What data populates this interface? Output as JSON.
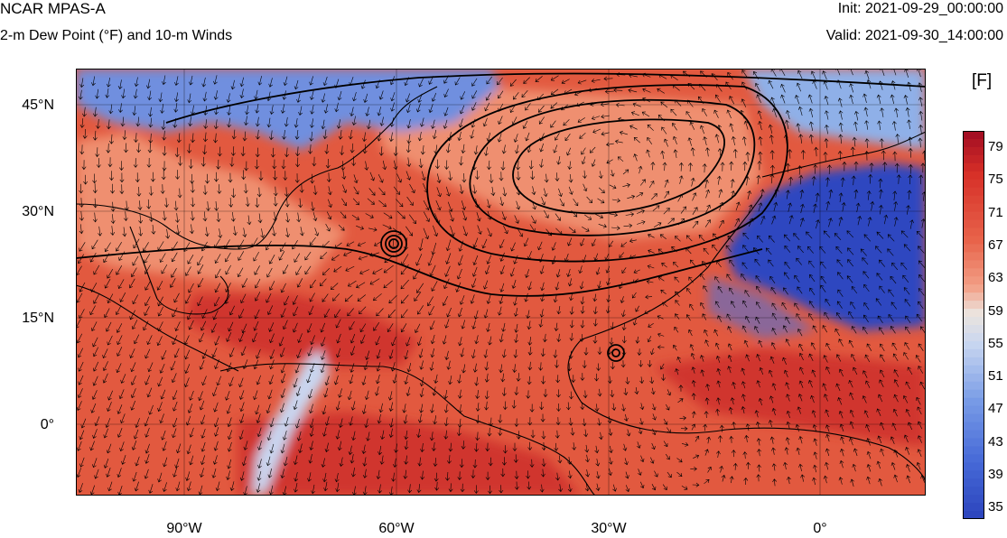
{
  "header": {
    "title": "NCAR MPAS-A",
    "subtitle": "2-m Dew Point (°F) and 10-m Winds",
    "init": "Init: 2021-09-29_00:00:00",
    "valid": "Valid: 2021-09-30_14:00:00"
  },
  "colorbar": {
    "units": "[F]",
    "levels": [
      "79",
      "75",
      "71",
      "67",
      "63",
      "59",
      "55",
      "51",
      "47",
      "43",
      "39",
      "35"
    ]
  },
  "axes": {
    "lat_labels": [
      "45°N",
      "30°N",
      "15°N",
      "0°"
    ],
    "lon_labels": [
      "90°W",
      "60°W",
      "30°W",
      "0°"
    ]
  },
  "colors": {
    "warm_deep": "#d0362e",
    "warm": "#e2593f",
    "warm_light": "#ef8f70",
    "neutral": "#e8e2de",
    "cool_light": "#8fb0e8",
    "cool": "#4f72d6",
    "cool_deep": "#2d46c0"
  }
}
